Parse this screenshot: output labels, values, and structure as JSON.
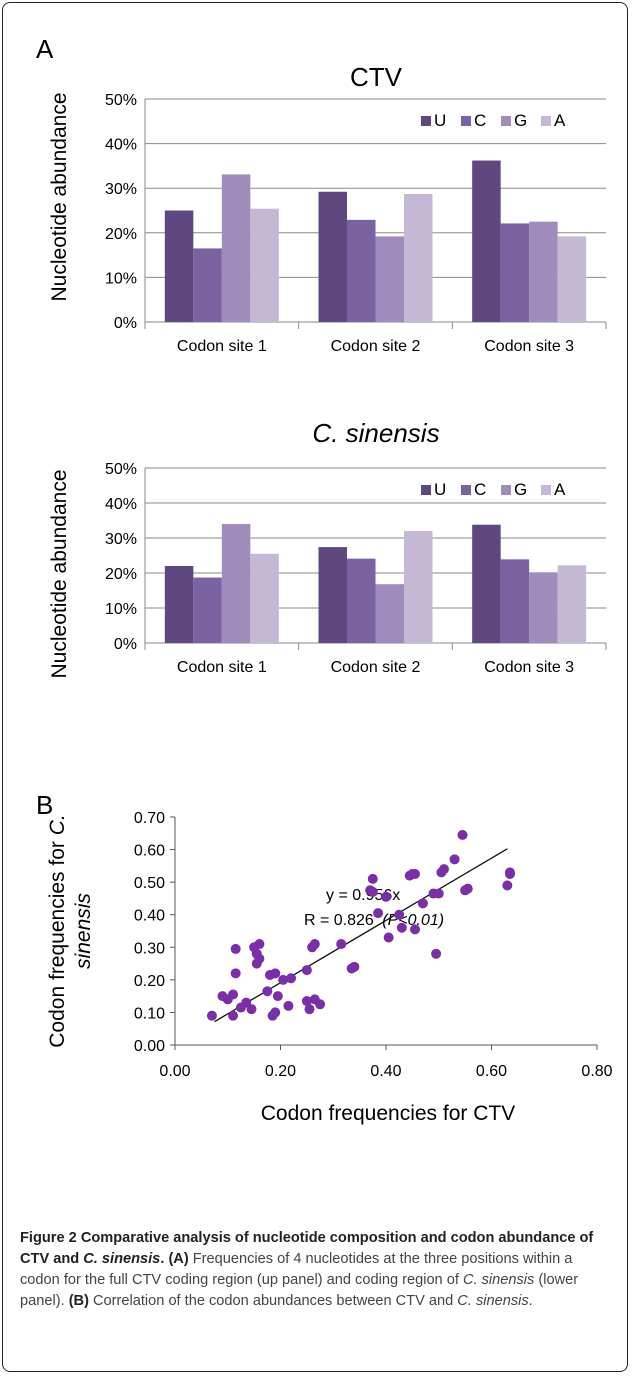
{
  "panels": {
    "a_letter": "A",
    "b_letter": "B"
  },
  "chart_data": [
    {
      "type": "bar",
      "title": "CTV",
      "ylabel": "Nucleotide abundance",
      "xlabel": "",
      "categories": [
        "Codon site 1",
        "Codon site 2",
        "Codon site 3"
      ],
      "yticks": [
        "0%",
        "10%",
        "20%",
        "30%",
        "40%",
        "50%"
      ],
      "ylim": [
        0,
        50
      ],
      "legend_position": "top-right",
      "series": [
        {
          "name": "U",
          "color": "#5f4880",
          "values": [
            25.0,
            29.2,
            36.2
          ]
        },
        {
          "name": "C",
          "color": "#7b62a0",
          "values": [
            16.5,
            22.9,
            22.1
          ]
        },
        {
          "name": "G",
          "color": "#9f8cbc",
          "values": [
            33.1,
            19.2,
            22.5
          ]
        },
        {
          "name": "A",
          "color": "#c4b8d4",
          "values": [
            25.4,
            28.7,
            19.2
          ]
        }
      ]
    },
    {
      "type": "bar",
      "title": "C. sinensis",
      "ylabel": "Nucleotide abundance",
      "xlabel": "",
      "categories": [
        "Codon site 1",
        "Codon site 2",
        "Codon site 3"
      ],
      "yticks": [
        "0%",
        "10%",
        "20%",
        "30%",
        "40%",
        "50%"
      ],
      "ylim": [
        0,
        50
      ],
      "legend_position": "top-right",
      "series": [
        {
          "name": "U",
          "color": "#5f4880",
          "values": [
            22.0,
            27.4,
            33.8
          ]
        },
        {
          "name": "C",
          "color": "#7b62a0",
          "values": [
            18.7,
            24.1,
            23.9
          ]
        },
        {
          "name": "G",
          "color": "#9f8cbc",
          "values": [
            34.0,
            16.8,
            20.2
          ]
        },
        {
          "name": "A",
          "color": "#c4b8d4",
          "values": [
            25.5,
            32.0,
            22.2
          ]
        }
      ]
    },
    {
      "type": "scatter",
      "title": "",
      "xlabel": "Codon frequencies for CTV",
      "ylabel": "Codon frequencies for C. sinensis",
      "xlim": [
        0,
        0.8
      ],
      "ylim": [
        0,
        0.7
      ],
      "xticks": [
        "0.00",
        "0.20",
        "0.40",
        "0.60",
        "0.80"
      ],
      "yticks": [
        "0.00",
        "0.10",
        "0.20",
        "0.30",
        "0.40",
        "0.50",
        "0.60",
        "0.70"
      ],
      "point_color": "#7a2fa8",
      "trendline": {
        "slope": 0.956,
        "x_range": [
          0.075,
          0.63
        ]
      },
      "annotation": {
        "equation": "y = 0.956x",
        "r_text": "R = 0.826",
        "p_text": "(P<0.01)"
      },
      "points": [
        [
          0.07,
          0.09
        ],
        [
          0.09,
          0.15
        ],
        [
          0.1,
          0.14
        ],
        [
          0.11,
          0.09
        ],
        [
          0.11,
          0.155
        ],
        [
          0.115,
          0.22
        ],
        [
          0.115,
          0.295
        ],
        [
          0.125,
          0.115
        ],
        [
          0.135,
          0.13
        ],
        [
          0.145,
          0.11
        ],
        [
          0.15,
          0.3
        ],
        [
          0.155,
          0.25
        ],
        [
          0.155,
          0.28
        ],
        [
          0.16,
          0.265
        ],
        [
          0.16,
          0.31
        ],
        [
          0.175,
          0.165
        ],
        [
          0.18,
          0.215
        ],
        [
          0.19,
          0.22
        ],
        [
          0.185,
          0.09
        ],
        [
          0.19,
          0.1
        ],
        [
          0.195,
          0.15
        ],
        [
          0.205,
          0.2
        ],
        [
          0.215,
          0.12
        ],
        [
          0.22,
          0.205
        ],
        [
          0.25,
          0.135
        ],
        [
          0.25,
          0.23
        ],
        [
          0.255,
          0.11
        ],
        [
          0.26,
          0.3
        ],
        [
          0.265,
          0.31
        ],
        [
          0.265,
          0.14
        ],
        [
          0.275,
          0.125
        ],
        [
          0.315,
          0.31
        ],
        [
          0.335,
          0.235
        ],
        [
          0.34,
          0.24
        ],
        [
          0.37,
          0.475
        ],
        [
          0.375,
          0.47
        ],
        [
          0.375,
          0.51
        ],
        [
          0.385,
          0.405
        ],
        [
          0.4,
          0.455
        ],
        [
          0.405,
          0.33
        ],
        [
          0.425,
          0.4
        ],
        [
          0.43,
          0.36
        ],
        [
          0.445,
          0.52
        ],
        [
          0.45,
          0.525
        ],
        [
          0.455,
          0.525
        ],
        [
          0.455,
          0.355
        ],
        [
          0.47,
          0.435
        ],
        [
          0.49,
          0.465
        ],
        [
          0.495,
          0.28
        ],
        [
          0.5,
          0.465
        ],
        [
          0.505,
          0.53
        ],
        [
          0.51,
          0.54
        ],
        [
          0.53,
          0.57
        ],
        [
          0.545,
          0.645
        ],
        [
          0.55,
          0.475
        ],
        [
          0.555,
          0.48
        ],
        [
          0.63,
          0.49
        ],
        [
          0.635,
          0.525
        ],
        [
          0.635,
          0.53
        ]
      ]
    }
  ],
  "caption": {
    "title": "Figure 2 Comparative analysis of nucleotide composition and codon abundance of CTV and ",
    "title_italic": "C. sinensis",
    "title_end": ".",
    "a_label": "(A)",
    "a_text": " Frequencies of 4 nucleotides at the three positions within a codon for the full CTV coding region (up panel) and coding region of ",
    "a_italic": "C. sinensis",
    "a_end": " (lower panel). ",
    "b_label": "(B)",
    "b_text": " Correlation of the codon abundances between CTV and ",
    "b_italic": "C. sinensis",
    "b_end": "."
  }
}
